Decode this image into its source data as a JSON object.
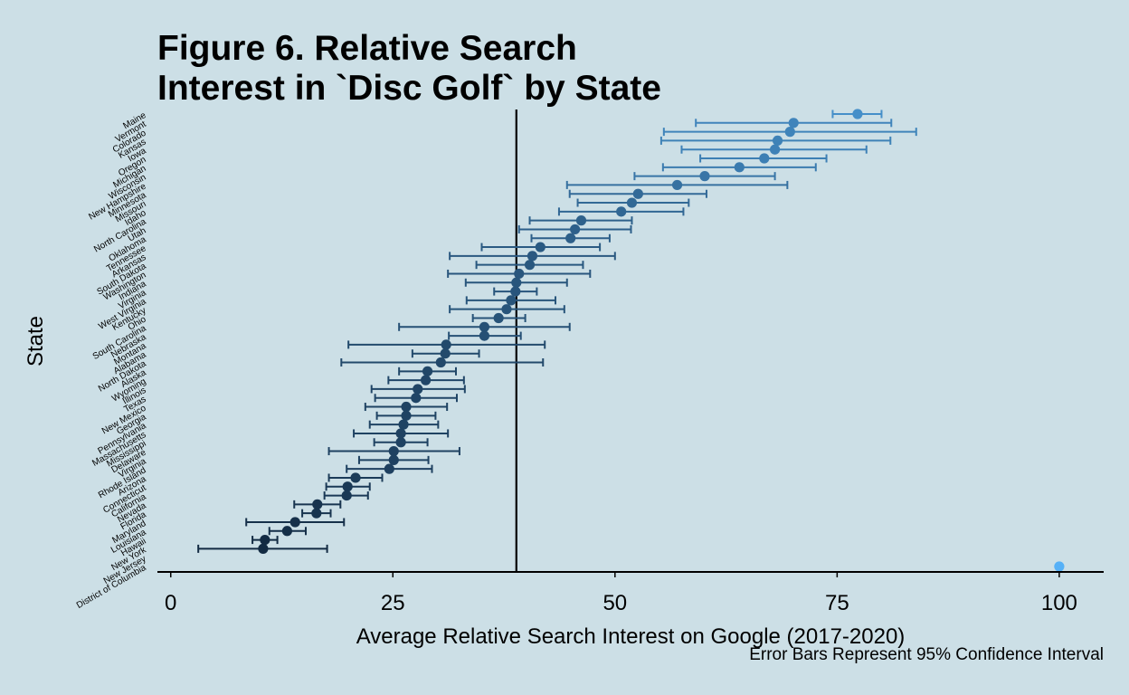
{
  "chart_data": {
    "type": "scatter",
    "title": "Figure 6. Relative Search\nInterest in `Disc Golf` by State",
    "xlabel": "Average Relative Search Interest on Google (2017-2020)",
    "ylabel": "State",
    "caption": "Error Bars Represent 95% Confidence Interval",
    "xlim": [
      -1.5,
      105
    ],
    "xticks": [
      0,
      25,
      50,
      75,
      100
    ],
    "reference_line_x": 38.9,
    "grid": false,
    "legend": "none",
    "colors": {
      "low": "#132b43",
      "high": "#56b1f7",
      "ref_line": "#000000"
    },
    "points": [
      {
        "state": "Maine",
        "x": 77.3,
        "lo": 74.5,
        "hi": 80.0
      },
      {
        "state": "Vermont",
        "x": 70.1,
        "lo": 59.1,
        "hi": 81.1
      },
      {
        "state": "Colorado",
        "x": 69.7,
        "lo": 55.5,
        "hi": 83.9
      },
      {
        "state": "Kansas",
        "x": 68.3,
        "lo": 55.2,
        "hi": 81.0
      },
      {
        "state": "Iowa",
        "x": 68.0,
        "lo": 57.5,
        "hi": 78.3
      },
      {
        "state": "Oregon",
        "x": 66.8,
        "lo": 59.6,
        "hi": 73.8
      },
      {
        "state": "Michigan",
        "x": 64.0,
        "lo": 55.4,
        "hi": 72.6
      },
      {
        "state": "Wisconsin",
        "x": 60.1,
        "lo": 52.2,
        "hi": 68.0
      },
      {
        "state": "New Hampshire",
        "x": 57.0,
        "lo": 44.6,
        "hi": 69.4
      },
      {
        "state": "Minnesota",
        "x": 52.6,
        "lo": 44.9,
        "hi": 60.3
      },
      {
        "state": "Missouri",
        "x": 51.9,
        "lo": 45.8,
        "hi": 58.3
      },
      {
        "state": "Idaho",
        "x": 50.7,
        "lo": 43.7,
        "hi": 57.7
      },
      {
        "state": "North Carolina",
        "x": 46.2,
        "lo": 40.4,
        "hi": 51.9
      },
      {
        "state": "Utah",
        "x": 45.5,
        "lo": 39.2,
        "hi": 51.8
      },
      {
        "state": "Oklahoma",
        "x": 45.0,
        "lo": 40.6,
        "hi": 49.4
      },
      {
        "state": "Tennessee",
        "x": 41.6,
        "lo": 35.0,
        "hi": 48.3
      },
      {
        "state": "Arkansas",
        "x": 40.7,
        "lo": 31.4,
        "hi": 50.0
      },
      {
        "state": "South Dakota",
        "x": 40.4,
        "lo": 34.4,
        "hi": 46.4
      },
      {
        "state": "Washington",
        "x": 39.2,
        "lo": 31.2,
        "hi": 47.2
      },
      {
        "state": "Indiana",
        "x": 38.9,
        "lo": 33.2,
        "hi": 44.6
      },
      {
        "state": "Virginia",
        "x": 38.8,
        "lo": 36.4,
        "hi": 41.2
      },
      {
        "state": "West Virginia",
        "x": 38.3,
        "lo": 33.3,
        "hi": 43.3
      },
      {
        "state": "Kentucky",
        "x": 37.8,
        "lo": 31.4,
        "hi": 44.3
      },
      {
        "state": "Ohio",
        "x": 36.9,
        "lo": 34.0,
        "hi": 39.9
      },
      {
        "state": "South Carolina",
        "x": 35.3,
        "lo": 25.7,
        "hi": 44.9
      },
      {
        "state": "Nebraska",
        "x": 35.3,
        "lo": 31.3,
        "hi": 39.4
      },
      {
        "state": "Montana",
        "x": 31.0,
        "lo": 20.0,
        "hi": 42.1
      },
      {
        "state": "Alabama",
        "x": 30.9,
        "lo": 27.2,
        "hi": 34.7
      },
      {
        "state": "North Dakota",
        "x": 30.4,
        "lo": 19.2,
        "hi": 41.9
      },
      {
        "state": "Alaska",
        "x": 28.9,
        "lo": 25.7,
        "hi": 32.1
      },
      {
        "state": "Wyoming",
        "x": 28.7,
        "lo": 24.5,
        "hi": 33.0
      },
      {
        "state": "Illinois",
        "x": 27.8,
        "lo": 22.6,
        "hi": 33.1
      },
      {
        "state": "Texas",
        "x": 27.6,
        "lo": 23.0,
        "hi": 32.2
      },
      {
        "state": "New Mexico",
        "x": 26.5,
        "lo": 21.9,
        "hi": 31.1
      },
      {
        "state": "Georgia",
        "x": 26.5,
        "lo": 23.2,
        "hi": 29.8
      },
      {
        "state": "Pennsylvania",
        "x": 26.2,
        "lo": 22.4,
        "hi": 30.1
      },
      {
        "state": "Massachusetts",
        "x": 25.9,
        "lo": 20.6,
        "hi": 31.2
      },
      {
        "state": "Mississippi",
        "x": 25.9,
        "lo": 22.9,
        "hi": 28.9
      },
      {
        "state": "Delaware",
        "x": 25.1,
        "lo": 17.8,
        "hi": 32.5
      },
      {
        "state": "Virginia",
        "x": 25.1,
        "lo": 21.2,
        "hi": 29.0
      },
      {
        "state": "Rhode Island",
        "x": 24.6,
        "lo": 19.8,
        "hi": 29.4
      },
      {
        "state": "Arizona",
        "x": 20.8,
        "lo": 17.8,
        "hi": 23.8
      },
      {
        "state": "Connecticut",
        "x": 19.9,
        "lo": 17.5,
        "hi": 22.4
      },
      {
        "state": "California",
        "x": 19.8,
        "lo": 17.3,
        "hi": 22.2
      },
      {
        "state": "Nevada",
        "x": 16.5,
        "lo": 13.9,
        "hi": 19.1
      },
      {
        "state": "Florida",
        "x": 16.4,
        "lo": 14.8,
        "hi": 18.0
      },
      {
        "state": "Maryland",
        "x": 14.0,
        "lo": 8.5,
        "hi": 19.5
      },
      {
        "state": "Louisiana",
        "x": 13.1,
        "lo": 11.1,
        "hi": 15.2
      },
      {
        "state": "Hawaii",
        "x": 10.6,
        "lo": 9.2,
        "hi": 12.0
      },
      {
        "state": "New York",
        "x": 10.4,
        "lo": 3.1,
        "hi": 17.6
      },
      {
        "state": "New Jersey",
        "x": null,
        "lo": null,
        "hi": null
      },
      {
        "state": "District of Columbia",
        "x": 100,
        "lo": null,
        "hi": null,
        "highlight": true
      }
    ]
  }
}
